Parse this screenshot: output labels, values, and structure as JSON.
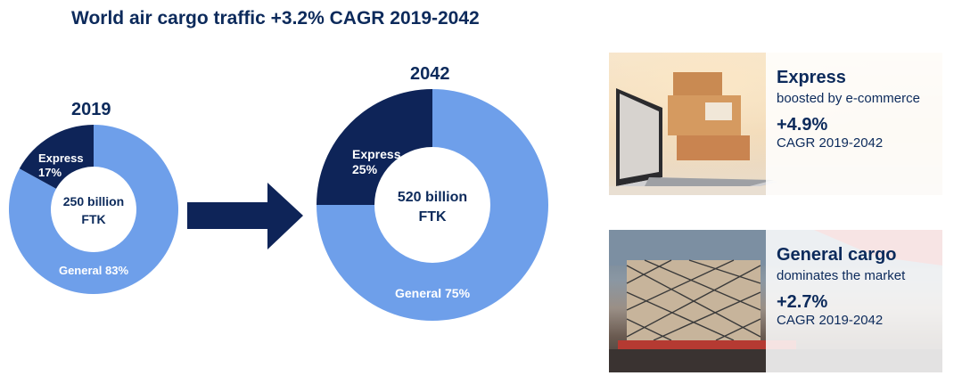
{
  "title": "World air cargo traffic +3.2% CAGR 2019-2042",
  "colors": {
    "navy": "#0c2a5b",
    "express": "#0e2458",
    "general": "#6e9fea",
    "white": "#ffffff"
  },
  "chart_data": [
    {
      "type": "pie",
      "title": "2019",
      "center_line1": "250 billion",
      "center_line2": "FTK",
      "slices": [
        {
          "name": "Express",
          "value": 17,
          "label_line1": "Express",
          "label_line2": "17%"
        },
        {
          "name": "General",
          "value": 83,
          "label_line1": "General 83%",
          "label_line2": ""
        }
      ]
    },
    {
      "type": "pie",
      "title": "2042",
      "center_line1": "520 billion",
      "center_line2": "FTK",
      "slices": [
        {
          "name": "Express",
          "value": 25,
          "label_line1": "Express",
          "label_line2": "25%"
        },
        {
          "name": "General",
          "value": 75,
          "label_line1": "General 75%",
          "label_line2": ""
        }
      ]
    }
  ],
  "cards": {
    "express": {
      "heading": "Express",
      "subheading": "boosted by e-commerce",
      "rate": "+4.9%",
      "period": "CAGR 2019-2042",
      "icon": "laptop-with-parcels-photo"
    },
    "general": {
      "heading": "General cargo",
      "subheading": "dominates the market",
      "rate": "+2.7%",
      "period": "CAGR 2019-2042",
      "icon": "cargo-pallets-photo"
    }
  }
}
